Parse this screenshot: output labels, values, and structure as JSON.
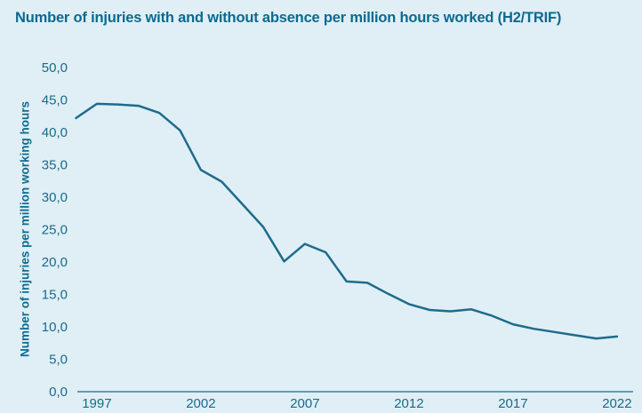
{
  "colors": {
    "background": "#dfeff5",
    "title_text": "#0b6a90",
    "axis_text": "#19698d",
    "line": "#1e6b8c"
  },
  "chart_data": {
    "type": "line",
    "title": "Number of injuries with and without absence per million hours worked (H2/TRIF)",
    "ylabel": "Number of injuries per million working hours",
    "xlabel": "",
    "x": [
      1996,
      1997,
      1998,
      1999,
      2000,
      2001,
      2002,
      2003,
      2004,
      2005,
      2006,
      2007,
      2008,
      2009,
      2010,
      2011,
      2012,
      2013,
      2014,
      2015,
      2016,
      2017,
      2018,
      2019,
      2020,
      2021,
      2022
    ],
    "series": [
      {
        "name": "Injuries with and without absence per million hours worked (H2/TRIF)",
        "values": [
          42.2,
          44.4,
          44.3,
          44.1,
          43.0,
          40.3,
          34.2,
          32.4,
          28.9,
          25.4,
          20.1,
          22.8,
          21.5,
          17.0,
          16.8,
          15.1,
          13.5,
          12.6,
          12.4,
          12.7,
          11.7,
          10.4,
          9.7,
          9.2,
          8.7,
          8.2,
          8.5
        ]
      }
    ],
    "ylim": [
      0,
      50
    ],
    "y_tick_step": 5,
    "y_tick_labels": [
      "0,0",
      "5,0",
      "10,0",
      "15,0",
      "20,0",
      "25,0",
      "30,0",
      "35,0",
      "40,0",
      "45,0",
      "50,0"
    ],
    "x_tick_years": [
      1997,
      2002,
      2007,
      2012,
      2017,
      2022
    ],
    "x_tick_labels": [
      "1997",
      "2002",
      "2007",
      "2012",
      "2017",
      "2022"
    ],
    "decimal_separator": ",",
    "grid": false,
    "legend": false
  }
}
